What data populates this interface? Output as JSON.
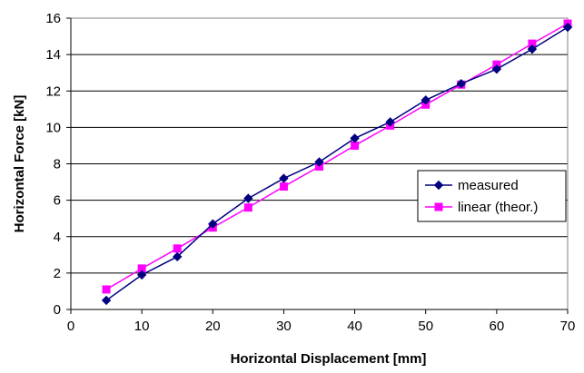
{
  "chart_data": {
    "type": "line",
    "title": "",
    "xlabel": "Horizontal Displacement [mm]",
    "ylabel": "Horizontal Force [kN]",
    "xlim": [
      0,
      70
    ],
    "ylim": [
      0,
      16
    ],
    "xticks": [
      0,
      10,
      20,
      30,
      40,
      50,
      60,
      70
    ],
    "yticks": [
      0,
      2,
      4,
      6,
      8,
      10,
      12,
      14,
      16
    ],
    "grid": "horizontal",
    "legend_position": "right",
    "series": [
      {
        "name": "measured",
        "color": "#000080",
        "marker": "diamond",
        "x": [
          5,
          10,
          15,
          20,
          25,
          30,
          35,
          40,
          45,
          50,
          55,
          60,
          65,
          70
        ],
        "y": [
          0.5,
          1.9,
          2.9,
          4.7,
          6.1,
          7.2,
          8.1,
          9.4,
          10.3,
          11.5,
          12.4,
          13.2,
          14.3,
          15.5
        ]
      },
      {
        "name": "linear (theor.)",
        "color": "#FF00FF",
        "marker": "square",
        "x": [
          5,
          10,
          15,
          20,
          25,
          30,
          35,
          40,
          45,
          50,
          55,
          60,
          65,
          70
        ],
        "y": [
          1.1,
          2.25,
          3.35,
          4.5,
          5.6,
          6.75,
          7.85,
          9.0,
          10.1,
          11.25,
          12.35,
          13.45,
          14.6,
          15.7
        ]
      }
    ]
  }
}
